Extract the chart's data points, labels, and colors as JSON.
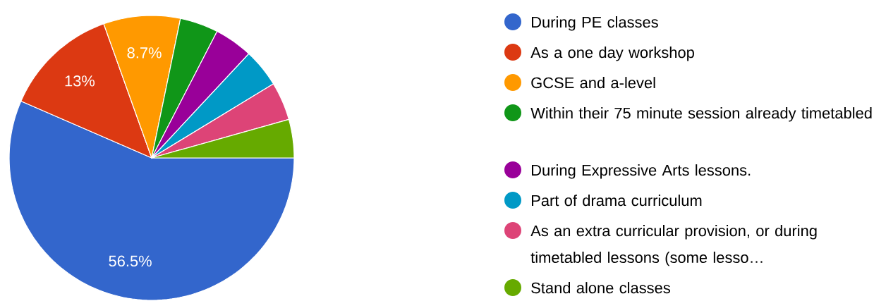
{
  "chart_data": {
    "type": "pie",
    "categories": [
      "During PE classes",
      "As a one day workshop",
      "GCSE and a-level",
      "Within their 75 minute session already timetabled",
      "During Expressive Arts lessons.",
      "Part of drama curriculum",
      "As an extra curricular provision, or during timetabled lessons (some lesso…",
      "Stand alone classes"
    ],
    "values": [
      56.5,
      13,
      8.7,
      4.35,
      4.35,
      4.35,
      4.35,
      4.35
    ],
    "colors": [
      "#3366cc",
      "#dc3912",
      "#ff9900",
      "#109618",
      "#990099",
      "#0099c6",
      "#dd4477",
      "#66aa00"
    ],
    "value_labels": [
      "56.5%",
      "13%",
      "8.7%",
      null,
      null,
      null,
      null,
      null
    ],
    "legend": "right"
  }
}
